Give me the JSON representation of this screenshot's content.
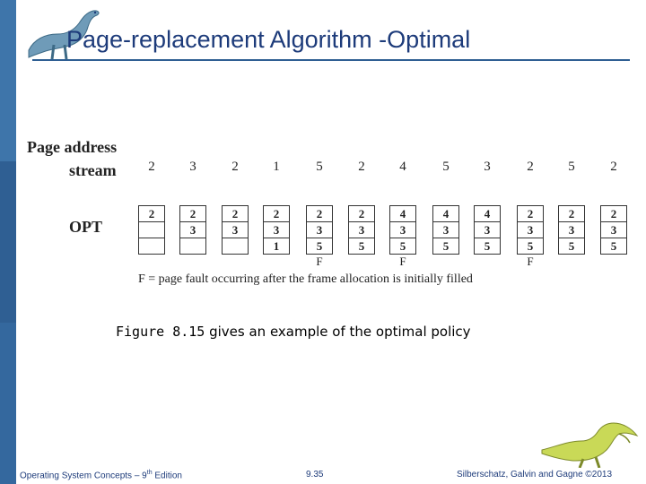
{
  "slide": {
    "title": "Page-replacement Algorithm -Optimal",
    "figure": {
      "label_line1": "Page address",
      "label_line2": "stream",
      "row_label": "OPT",
      "reference_string": [
        "2",
        "3",
        "2",
        "1",
        "5",
        "2",
        "4",
        "5",
        "3",
        "2",
        "5",
        "2"
      ],
      "frames": [
        [
          "2",
          "",
          ""
        ],
        [
          "2",
          "3",
          ""
        ],
        [
          "2",
          "3",
          ""
        ],
        [
          "2",
          "3",
          "1"
        ],
        [
          "2",
          "3",
          "5"
        ],
        [
          "2",
          "3",
          "5"
        ],
        [
          "4",
          "3",
          "5"
        ],
        [
          "4",
          "3",
          "5"
        ],
        [
          "4",
          "3",
          "5"
        ],
        [
          "2",
          "3",
          "5"
        ],
        [
          "2",
          "3",
          "5"
        ],
        [
          "2",
          "3",
          "5"
        ]
      ],
      "faults": [
        "",
        "",
        "",
        "",
        "F",
        "",
        "F",
        "",
        "",
        "F",
        "",
        ""
      ],
      "fault_note": "F = page fault occurring after the frame allocation is initially filled"
    },
    "caption": {
      "figure_ref": "Figure 8.15",
      "text": " gives an example of the optimal policy"
    },
    "footer": {
      "left_prefix": "Operating System Concepts – 9",
      "left_sup": "th",
      "left_suffix": " Edition",
      "center": "9.35",
      "right": "Silberschatz, Galvin and Gagne ©2013"
    }
  },
  "colors": {
    "sidebar": "#2f5f93",
    "title": "#1d3b7a",
    "footer": "#1d3b7a"
  },
  "icons": [
    "dinosaur-logo-icon",
    "dinosaur-footer-icon"
  ]
}
